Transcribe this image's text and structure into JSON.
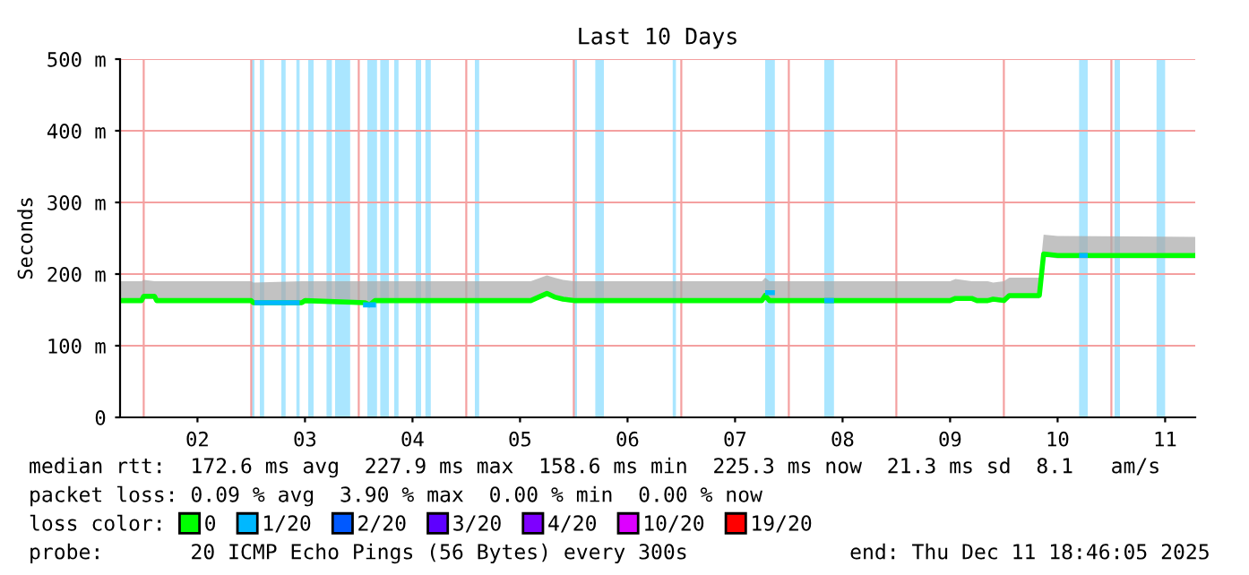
{
  "chart_data": {
    "type": "line",
    "title": "Last 10 Days",
    "ylabel": "Seconds",
    "xlim": [
      1.78,
      11.78
    ],
    "xticks": [
      {
        "value": 2.5,
        "label": "02"
      },
      {
        "value": 3.5,
        "label": "03"
      },
      {
        "value": 4.5,
        "label": "04"
      },
      {
        "value": 5.5,
        "label": "05"
      },
      {
        "value": 6.5,
        "label": "06"
      },
      {
        "value": 7.5,
        "label": "07"
      },
      {
        "value": 8.5,
        "label": "08"
      },
      {
        "value": 9.5,
        "label": "09"
      },
      {
        "value": 10.5,
        "label": "10"
      },
      {
        "value": 11.5,
        "label": "11"
      }
    ],
    "ylim": [
      0,
      500
    ],
    "yticks": [
      0,
      {
        "value": 100,
        "label": "100 m"
      },
      {
        "value": 200,
        "label": "200 m"
      },
      {
        "value": 300,
        "label": "300 m"
      },
      {
        "value": 400,
        "label": "400 m"
      },
      {
        "value": 500,
        "label": "500 m"
      }
    ],
    "grid": "y",
    "legend": "bottom",
    "legend_title": "loss color:",
    "series": [
      {
        "name": "0",
        "color": "#00ff00",
        "x": [
          1.78,
          1.98,
          2.0,
          2.1,
          2.12,
          3.0,
          3.02,
          3.47,
          3.5,
          4.06,
          4.1,
          4.15,
          5.6,
          5.75,
          5.82,
          5.9,
          6.0,
          7.75,
          7.78,
          7.82,
          9.5,
          9.55,
          9.7,
          9.75,
          9.85,
          9.9,
          10.0,
          10.05,
          10.33,
          10.37,
          10.5,
          11.78
        ],
        "values": [
          163,
          163,
          169,
          169,
          163,
          163,
          160,
          160,
          163,
          160,
          157,
          163,
          163,
          173,
          168,
          165,
          163,
          163,
          170,
          163,
          163,
          166,
          166,
          163,
          163,
          165,
          163,
          170,
          170,
          228,
          226,
          226
        ],
        "lower": [
          160,
          160,
          165,
          165,
          160,
          160,
          157,
          157,
          160,
          157,
          154,
          160,
          160,
          169,
          165,
          162,
          160,
          160,
          166,
          160,
          160,
          163,
          163,
          160,
          160,
          162,
          160,
          166,
          166,
          224,
          222,
          222
        ],
        "upper": [
          190,
          190,
          192,
          190,
          190,
          190,
          188,
          190,
          190,
          190,
          190,
          190,
          190,
          198,
          195,
          192,
          190,
          190,
          195,
          190,
          190,
          193,
          190,
          190,
          190,
          188,
          190,
          195,
          195,
          255,
          253,
          252
        ]
      },
      {
        "name": "1/20",
        "color": "#00b8ff",
        "x": [
          3.03,
          3.45,
          3.46,
          4.04,
          4.16,
          4.17,
          7.78,
          7.87,
          7.88,
          8.33,
          8.42,
          8.43,
          10.7,
          10.78
        ],
        "values": [
          160,
          160,
          null,
          157,
          157,
          null,
          174,
          174,
          null,
          163,
          163,
          null,
          226,
          226
        ]
      },
      {
        "name": "2/20",
        "color": "#0059ff"
      },
      {
        "name": "3/20",
        "color": "#5e00ff"
      },
      {
        "name": "4/20",
        "color": "#7e00ff"
      },
      {
        "name": "10/20",
        "color": "#dd00ff"
      },
      {
        "name": "19/20",
        "color": "#ff0000"
      }
    ],
    "bands": [
      {
        "axis": "x",
        "from": 3.0,
        "to": 3.03,
        "color": "#aae6ff"
      },
      {
        "axis": "x",
        "from": 3.08,
        "to": 3.12,
        "color": "#aae6ff"
      },
      {
        "axis": "x",
        "from": 3.28,
        "to": 3.32,
        "color": "#aae6ff"
      },
      {
        "axis": "x",
        "from": 3.42,
        "to": 3.45,
        "color": "#aae6ff"
      },
      {
        "axis": "x",
        "from": 3.53,
        "to": 3.58,
        "color": "#aae6ff"
      },
      {
        "axis": "x",
        "from": 3.7,
        "to": 3.75,
        "color": "#aae6ff"
      },
      {
        "axis": "x",
        "from": 3.78,
        "to": 3.92,
        "color": "#aae6ff"
      },
      {
        "axis": "x",
        "from": 4.08,
        "to": 4.17,
        "color": "#aae6ff"
      },
      {
        "axis": "x",
        "from": 4.2,
        "to": 4.28,
        "color": "#aae6ff"
      },
      {
        "axis": "x",
        "from": 4.33,
        "to": 4.37,
        "color": "#aae6ff"
      },
      {
        "axis": "x",
        "from": 4.53,
        "to": 4.58,
        "color": "#aae6ff"
      },
      {
        "axis": "x",
        "from": 4.62,
        "to": 4.67,
        "color": "#aae6ff"
      },
      {
        "axis": "x",
        "from": 5.08,
        "to": 5.12,
        "color": "#aae6ff"
      },
      {
        "axis": "x",
        "from": 6.0,
        "to": 6.03,
        "color": "#aae6ff"
      },
      {
        "axis": "x",
        "from": 6.2,
        "to": 6.28,
        "color": "#aae6ff"
      },
      {
        "axis": "x",
        "from": 6.92,
        "to": 6.95,
        "color": "#aae6ff"
      },
      {
        "axis": "x",
        "from": 7.78,
        "to": 7.87,
        "color": "#aae6ff"
      },
      {
        "axis": "x",
        "from": 8.33,
        "to": 8.42,
        "color": "#aae6ff"
      },
      {
        "axis": "x",
        "from": 10.7,
        "to": 10.78,
        "color": "#aae6ff"
      },
      {
        "axis": "x",
        "from": 11.03,
        "to": 11.08,
        "color": "#aae6ff"
      },
      {
        "axis": "x",
        "from": 11.42,
        "to": 11.5,
        "color": "#aae6ff"
      }
    ],
    "ref_lines": [
      {
        "axis": "x",
        "value": 2,
        "color": "#f4a0a0"
      },
      {
        "axis": "x",
        "value": 3,
        "color": "#f4a0a0"
      },
      {
        "axis": "x",
        "value": 4,
        "color": "#f4a0a0"
      },
      {
        "axis": "x",
        "value": 5,
        "color": "#f4a0a0"
      },
      {
        "axis": "x",
        "value": 6,
        "color": "#f4a0a0"
      },
      {
        "axis": "x",
        "value": 7,
        "color": "#f4a0a0"
      },
      {
        "axis": "x",
        "value": 8,
        "color": "#f4a0a0"
      },
      {
        "axis": "x",
        "value": 9,
        "color": "#f4a0a0"
      },
      {
        "axis": "x",
        "value": 10,
        "color": "#f4a0a0"
      },
      {
        "axis": "x",
        "value": 11,
        "color": "#f4a0a0"
      }
    ],
    "annotations": [
      "median rtt:  172.6 ms avg  227.9 ms max  158.6 ms min  225.3 ms now  21.3 ms sd  8.1   am/s",
      "packet loss: 0.09 % avg  3.90 % max  0.00 % min  0.00 % now",
      "probe:       20 ICMP Echo Pings (56 Bytes) every 300s             end: Thu Dec 11 18:46:05 2025"
    ]
  }
}
